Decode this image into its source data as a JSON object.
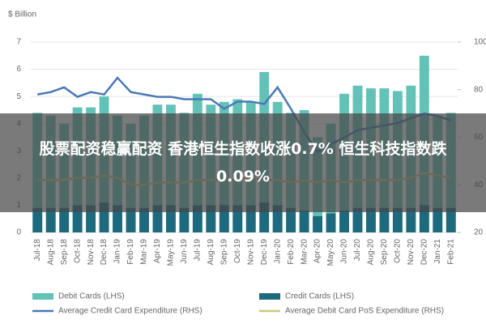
{
  "chart_data": {
    "type": "combo",
    "y_label": "$ Billion",
    "categories": [
      "Jul-18",
      "Aug-18",
      "Sep-18",
      "Oct-18",
      "Nov-18",
      "Dec-18",
      "Jan-19",
      "Feb-19",
      "Mar-19",
      "Apr-19",
      "May-19",
      "Jun-19",
      "Jul-19",
      "Aug-19",
      "Sep-19",
      "Oct-19",
      "Nov-19",
      "Dec-19",
      "Jan-20",
      "Feb-20",
      "Mar-20",
      "Apr-20",
      "May-20",
      "Jun-20",
      "Jul-20",
      "Aug-20",
      "Sep-20",
      "Oct-20",
      "Nov-20",
      "Dec-20",
      "Jan-21",
      "Feb-21"
    ],
    "ylim": [
      0,
      7
    ],
    "yticks": [
      0,
      1,
      2,
      3,
      4,
      5,
      6,
      7
    ],
    "y2lim": [
      20,
      100
    ],
    "y2ticks": [
      20,
      40,
      60,
      80,
      100
    ],
    "series": [
      {
        "name": "Debit Cards (LHS)",
        "type": "bar",
        "color": "#63c2b8",
        "values": [
          4.4,
          4.3,
          4.0,
          4.6,
          4.6,
          5.0,
          4.3,
          4.0,
          4.3,
          4.7,
          4.7,
          4.4,
          5.1,
          4.7,
          4.8,
          4.9,
          4.8,
          5.9,
          4.8,
          4.4,
          4.5,
          3.5,
          4.0,
          5.1,
          5.4,
          5.3,
          5.3,
          5.2,
          5.4,
          6.5,
          4.3,
          4.4
        ]
      },
      {
        "name": "Credit Cards (LHS)",
        "type": "bar",
        "color": "#1d6a7e",
        "values": [
          0.9,
          0.9,
          0.9,
          1.0,
          1.0,
          1.1,
          1.0,
          0.9,
          0.9,
          1.0,
          1.0,
          0.9,
          1.0,
          1.0,
          1.0,
          1.0,
          1.0,
          1.1,
          1.0,
          0.9,
          0.8,
          0.6,
          0.7,
          0.8,
          0.9,
          0.9,
          0.9,
          0.9,
          0.9,
          1.0,
          0.9,
          0.9
        ]
      },
      {
        "name": "Average Credit Card Expenditure (RHS)",
        "type": "line",
        "axis": "y2",
        "color": "#4a78b6",
        "values": [
          78,
          79,
          81,
          77,
          79,
          78,
          85,
          79,
          78,
          77,
          77,
          76,
          76,
          76,
          72,
          75,
          75,
          74,
          81,
          72,
          62,
          54,
          57,
          60,
          63,
          64,
          65,
          66,
          68,
          70,
          69,
          67
        ]
      },
      {
        "name": "Average Debit Card PoS Expenditure (RHS)",
        "type": "line",
        "axis": "y2",
        "color": "#c9c77e",
        "values": [
          42,
          42,
          42,
          43,
          43,
          44,
          43,
          40,
          40,
          41,
          41,
          41,
          42,
          42,
          42,
          42,
          43,
          42,
          42,
          41,
          42,
          41,
          42,
          41,
          42,
          42,
          42,
          42,
          43,
          45,
          44,
          43
        ]
      }
    ]
  },
  "overlay_title": "股票配资稳赢配资 香港恒生指数收涨0.7% 恒生科技指数跌0.09%"
}
